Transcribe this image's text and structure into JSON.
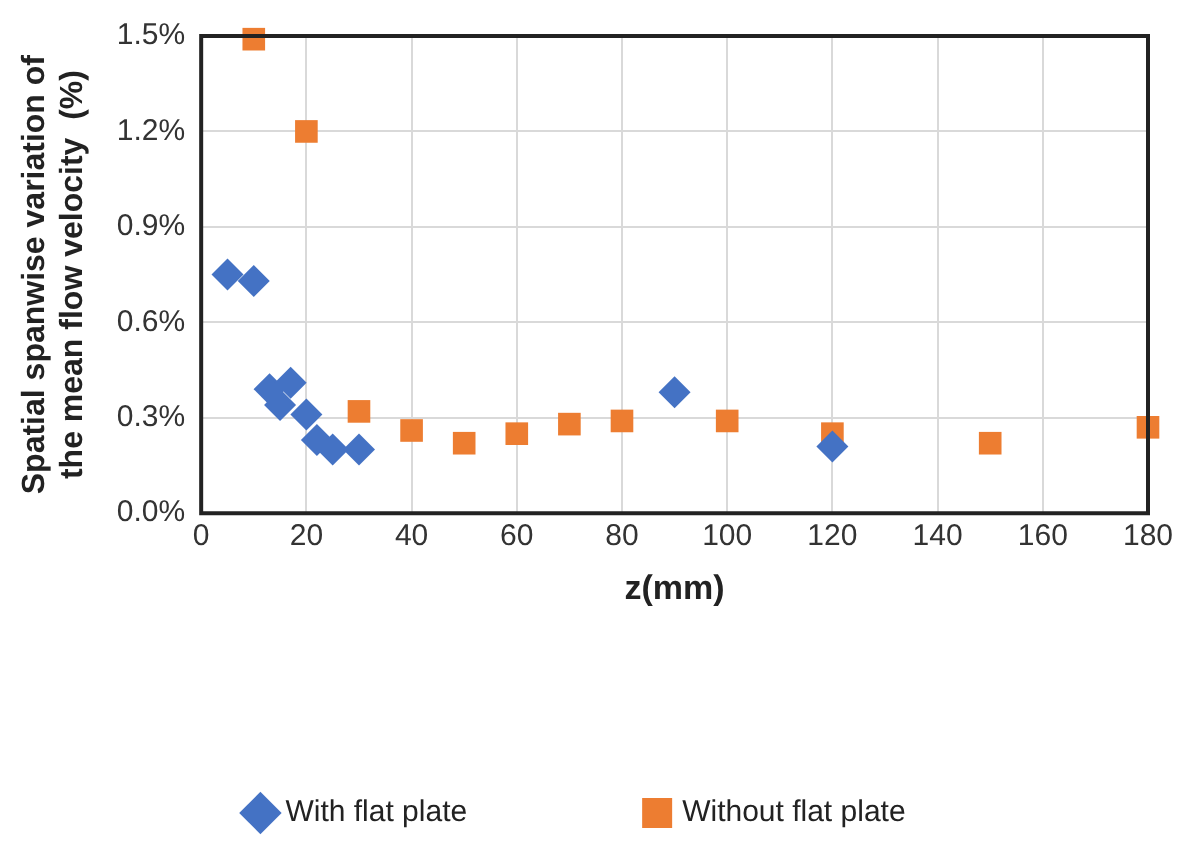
{
  "chart_data": {
    "type": "scatter",
    "xlabel": "z(mm)",
    "ylabel": "Spatial spanwise variation of the mean flow velocity  (%)",
    "xlim": [
      0,
      180
    ],
    "xticks": [
      0,
      20,
      40,
      60,
      80,
      100,
      120,
      140,
      160,
      180
    ],
    "ylim": [
      0,
      1.5
    ],
    "yticks": [
      {
        "value": 0,
        "label": "0.0%"
      },
      {
        "value": 0.3,
        "label": "0.3%"
      },
      {
        "value": 0.6,
        "label": "0.6%"
      },
      {
        "value": 0.9,
        "label": "0.9%"
      },
      {
        "value": 1.2,
        "label": "1.2%"
      },
      {
        "value": 1.5,
        "label": "1.5%"
      }
    ],
    "grid": true,
    "legend": "bottom",
    "series": [
      {
        "name": "With flat plate",
        "color": "#4472c4",
        "marker": "diamond",
        "x": [
          5,
          10,
          13,
          15,
          17,
          20,
          22,
          25,
          30,
          90,
          120
        ],
        "values": [
          0.75,
          0.73,
          0.39,
          0.34,
          0.41,
          0.31,
          0.23,
          0.2,
          0.2,
          0.38,
          0.21
        ]
      },
      {
        "name": "Without flat plate",
        "color": "#ed7d31",
        "marker": "square",
        "x": [
          10,
          20,
          30,
          40,
          50,
          60,
          70,
          80,
          100,
          120,
          150,
          180
        ],
        "values": [
          1.49,
          1.2,
          0.32,
          0.26,
          0.22,
          0.25,
          0.28,
          0.29,
          0.29,
          0.25,
          0.22,
          0.27
        ]
      }
    ]
  }
}
